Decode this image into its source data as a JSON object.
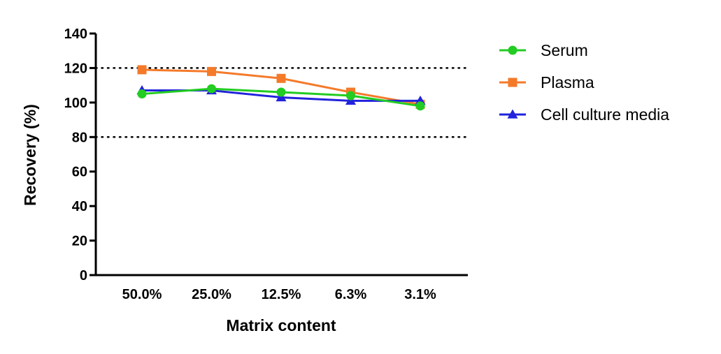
{
  "chart_data": {
    "type": "line",
    "title": "",
    "xlabel": "Matrix content",
    "ylabel": "Recovery (%)",
    "categories": [
      "50.0%",
      "25.0%",
      "12.5%",
      "6.3%",
      "3.1%"
    ],
    "ylim": [
      0,
      140
    ],
    "yticks": [
      0,
      20,
      40,
      60,
      80,
      100,
      120,
      140
    ],
    "ytick_labels": [
      "0",
      "20",
      "40",
      "60",
      "80",
      "100",
      "120",
      "140"
    ],
    "reference_lines": [
      {
        "y": 120,
        "style": "dotted"
      },
      {
        "y": 80,
        "style": "dotted"
      }
    ],
    "grid": false,
    "legend_position": "right",
    "series": [
      {
        "name": "Plasma",
        "marker": "square",
        "color": "#f47a2a",
        "values": [
          119,
          118,
          114,
          106,
          99
        ]
      },
      {
        "name": "Cell culture media",
        "marker": "triangle",
        "color": "#2222dd",
        "values": [
          107,
          107,
          103,
          101,
          101
        ]
      },
      {
        "name": "Serum",
        "marker": "circle",
        "color": "#22cc22",
        "values": [
          105,
          108,
          106,
          104,
          98
        ]
      }
    ],
    "legend_order": [
      "Serum",
      "Plasma",
      "Cell culture media"
    ]
  }
}
